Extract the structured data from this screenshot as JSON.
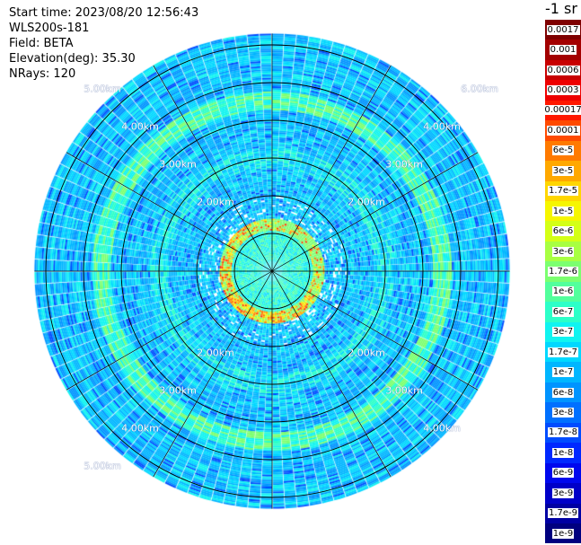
{
  "info": {
    "start_time": "Start time: 2023/08/20 12:56:43",
    "device": "WLS200s-181",
    "field": "Field: BETA",
    "elevation": "Elevation(deg): 35.30",
    "nrays": "NRays: 120"
  },
  "units": "-1 sr",
  "colorbar": {
    "entries": [
      {
        "label": "0.0017",
        "color": "#7f0000"
      },
      {
        "label": "0.001",
        "color": "#a30000"
      },
      {
        "label": "0.0006",
        "color": "#c80000"
      },
      {
        "label": "0.0003",
        "color": "#ee0000"
      },
      {
        "label": "0.00017",
        "color": "#ff1800"
      },
      {
        "label": "0.0001",
        "color": "#ff4a00"
      },
      {
        "label": "6e-5",
        "color": "#ff7a00"
      },
      {
        "label": "3e-5",
        "color": "#ffa800"
      },
      {
        "label": "1.7e-5",
        "color": "#ffd600"
      },
      {
        "label": "1e-5",
        "color": "#f6f600"
      },
      {
        "label": "6e-6",
        "color": "#d4ff16"
      },
      {
        "label": "3e-6",
        "color": "#a8ff42"
      },
      {
        "label": "1.7e-6",
        "color": "#7cff70"
      },
      {
        "label": "1e-6",
        "color": "#52ff9c"
      },
      {
        "label": "6e-7",
        "color": "#2cffc8"
      },
      {
        "label": "3e-7",
        "color": "#10f4f0"
      },
      {
        "label": "1.7e-7",
        "color": "#00d8ff"
      },
      {
        "label": "1e-7",
        "color": "#00b6ff"
      },
      {
        "label": "6e-8",
        "color": "#0094ff"
      },
      {
        "label": "3e-8",
        "color": "#0070ff"
      },
      {
        "label": "1.7e-8",
        "color": "#004cff"
      },
      {
        "label": "1e-8",
        "color": "#0028ff"
      },
      {
        "label": "6e-9",
        "color": "#0008ee"
      },
      {
        "label": "3e-9",
        "color": "#0000c8"
      },
      {
        "label": "1.7e-9",
        "color": "#0000a3"
      },
      {
        "label": "1e-9",
        "color": "#00007f"
      }
    ]
  },
  "range_rings_km": [
    1,
    2,
    3,
    4,
    5,
    6
  ],
  "range_ring_labels": [
    "2.00km",
    "3.00km",
    "4.00km",
    "5.00km",
    "6.00km"
  ],
  "radar": {
    "n_rays": 120,
    "max_range_km": 6.3,
    "spoke_count": 12
  }
}
